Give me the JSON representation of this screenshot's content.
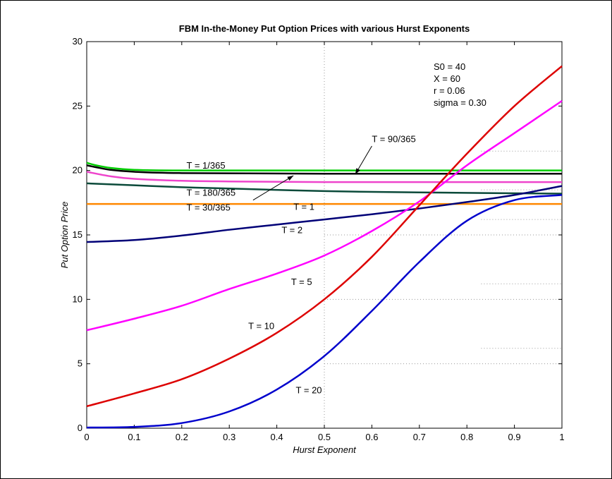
{
  "chart_data": {
    "type": "line",
    "title": "FBM In-the-Money Put Option Prices with various Hurst Exponents",
    "xlabel": "Hurst Exponent",
    "ylabel": "Put Option Price",
    "xlim": [
      0,
      1
    ],
    "ylim": [
      0,
      30
    ],
    "xticks": [
      "0",
      "0.1",
      "0.2",
      "0.3",
      "0.4",
      "0.5",
      "0.6",
      "0.7",
      "0.8",
      "0.9",
      "1"
    ],
    "yticks": [
      "0",
      "5",
      "10",
      "15",
      "20",
      "25",
      "30"
    ],
    "grid": "dotted partial",
    "series": [
      {
        "name": "T = 1/365",
        "color": "#00cc00",
        "x": [
          0,
          0.02,
          0.05,
          0.1,
          0.2,
          0.5,
          1.0
        ],
        "y": [
          20.6,
          20.4,
          20.2,
          20.05,
          20.0,
          20.0,
          20.0
        ]
      },
      {
        "name": "T = 30/365",
        "color": "#000000",
        "x": [
          0,
          0.02,
          0.05,
          0.1,
          0.2,
          0.5,
          1.0
        ],
        "y": [
          20.4,
          20.25,
          20.05,
          19.9,
          19.8,
          19.75,
          19.75
        ]
      },
      {
        "name": "T = 90/365",
        "color": "#ee44cc",
        "x": [
          0,
          0.05,
          0.1,
          0.2,
          0.3,
          0.5,
          1.0
        ],
        "y": [
          19.9,
          19.55,
          19.35,
          19.2,
          19.15,
          19.1,
          19.1
        ]
      },
      {
        "name": "T = 180/365",
        "color": "#0b4a3a",
        "x": [
          0,
          0.1,
          0.2,
          0.3,
          0.5,
          0.7,
          1.0
        ],
        "y": [
          19.0,
          18.85,
          18.7,
          18.6,
          18.4,
          18.3,
          18.2
        ]
      },
      {
        "name": "T = 1",
        "color": "#ff8800",
        "x": [
          0,
          1.0
        ],
        "y": [
          17.4,
          17.4
        ]
      },
      {
        "name": "T = 2",
        "color": "#000077",
        "x": [
          0,
          0.1,
          0.2,
          0.3,
          0.4,
          0.5,
          0.6,
          0.7,
          0.8,
          0.9,
          1.0
        ],
        "y": [
          14.45,
          14.6,
          14.95,
          15.4,
          15.8,
          16.2,
          16.6,
          17.05,
          17.55,
          18.1,
          18.8
        ]
      },
      {
        "name": "T = 5",
        "color": "#ff00ff",
        "x": [
          0,
          0.1,
          0.2,
          0.3,
          0.4,
          0.5,
          0.6,
          0.7,
          0.8,
          0.9,
          1.0
        ],
        "y": [
          7.6,
          8.5,
          9.5,
          10.8,
          12.0,
          13.4,
          15.3,
          17.6,
          20.4,
          22.9,
          25.4
        ]
      },
      {
        "name": "T = 10",
        "color": "#dd0000",
        "x": [
          0,
          0.1,
          0.2,
          0.3,
          0.4,
          0.5,
          0.6,
          0.7,
          0.8,
          0.9,
          1.0
        ],
        "y": [
          1.7,
          2.7,
          3.8,
          5.4,
          7.4,
          10.0,
          13.3,
          17.3,
          21.3,
          25.0,
          28.1
        ]
      },
      {
        "name": "T = 20",
        "color": "#0000cc",
        "x": [
          0,
          0.1,
          0.2,
          0.3,
          0.4,
          0.5,
          0.6,
          0.7,
          0.8,
          0.9,
          1.0
        ],
        "y": [
          0.05,
          0.1,
          0.4,
          1.3,
          3.0,
          5.6,
          9.1,
          12.9,
          16.1,
          17.7,
          18.1
        ]
      }
    ],
    "labels": [
      {
        "text": "T = 1/365",
        "x": 0.21,
        "y": 20.15
      },
      {
        "text": "T = 180/365",
        "x": 0.21,
        "y": 18.05
      },
      {
        "text": "T = 30/365",
        "x": 0.21,
        "y": 16.9
      },
      {
        "text": "T = 1",
        "x": 0.435,
        "y": 16.95
      },
      {
        "text": "T = 2",
        "x": 0.41,
        "y": 15.15
      },
      {
        "text": "T = 5",
        "x": 0.43,
        "y": 11.1
      },
      {
        "text": "T = 10",
        "x": 0.34,
        "y": 7.7
      },
      {
        "text": "T = 20",
        "x": 0.44,
        "y": 2.7
      },
      {
        "text": "T = 90/365",
        "x": 0.6,
        "y": 22.2
      }
    ],
    "arrows": [
      {
        "from": [
          0.6,
          21.9
        ],
        "to": [
          0.565,
          19.7
        ]
      },
      {
        "from": [
          0.35,
          17.7
        ],
        "to": [
          0.435,
          19.6
        ]
      }
    ],
    "parameters": [
      "S0 = 40",
      "X = 60",
      "r = 0.06",
      "sigma = 0.30"
    ],
    "parameters_pos": {
      "x": 0.73,
      "y": 27.8
    }
  }
}
